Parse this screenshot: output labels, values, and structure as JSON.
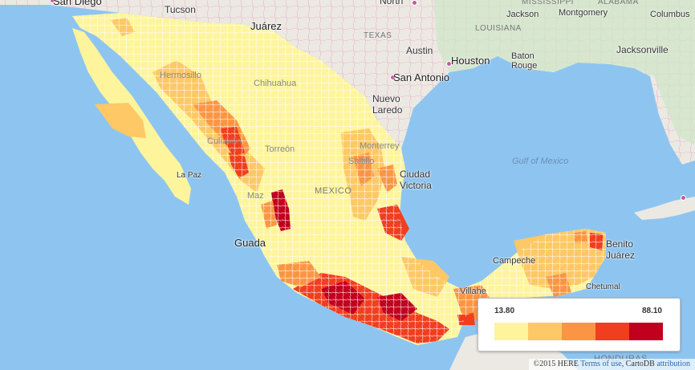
{
  "legend": {
    "min": "13.80",
    "max": "88.10",
    "colors": [
      "#fdf49c",
      "#fdc865",
      "#fb9543",
      "#f03e1f",
      "#c1001d"
    ]
  },
  "labels": {
    "san_diego": "San Diego",
    "tucson": "Tucson",
    "juarez": "Juárez",
    "north_texas": "North",
    "mississippi": "MISSISSIPPI",
    "alabama": "ALABAMA",
    "jackson": "Jackson",
    "montgomery": "Montgomery",
    "columbus": "Columbus",
    "texas": "TEXAS",
    "louisiana": "LOUISIANA",
    "austin": "Austin",
    "houston": "Houston",
    "baton_rouge": "Baton\nRouge",
    "jacksonville": "Jacksonville",
    "san_antonio": "San Antonio",
    "nuevo_laredo": "Nuevo\nLaredo",
    "hermosillo": "Hermosillo",
    "chihuahua": "Chihuahua",
    "torreon": "Torreón",
    "monterrey": "Monterrey",
    "saltillo": "Saltillo",
    "ciudad_victoria": "Ciudad\nVictoria",
    "mexico": "MEXICO",
    "la_paz": "La Paz",
    "gulf": "Gulf of Mexico",
    "guadalajara": "Guada",
    "campeche": "Campeche",
    "benito_juarez": "Benito\nJuárez",
    "chetumal": "Chetumal",
    "villahermosa": "Villahe",
    "honduras": "HONDURAS",
    "culiacan": "Culiacán",
    "mazatlan": "Maz"
  },
  "attribution": {
    "prefix": "©2015 HERE",
    "terms": "Terms of use",
    "carto": "CartoDB",
    "attr": "attribution"
  }
}
